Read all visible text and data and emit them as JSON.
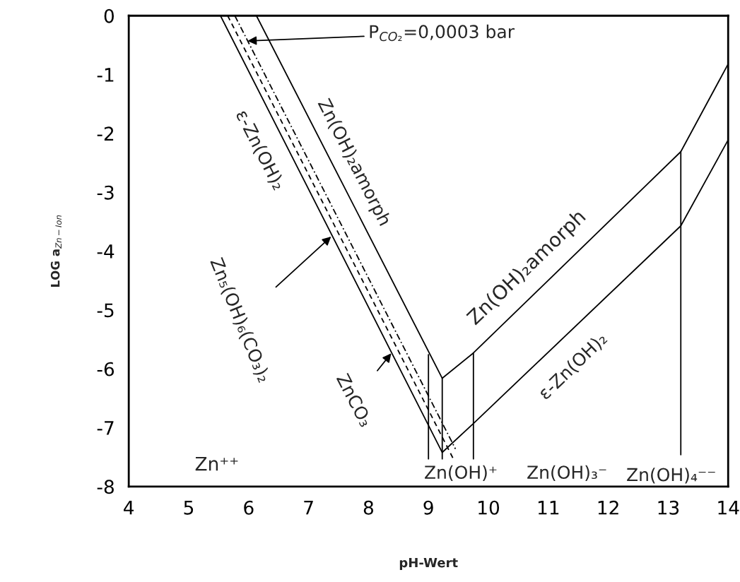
{
  "chart_data": {
    "type": "line",
    "xlabel": "pH-Wert",
    "ylabel": "LOG a$_{Zn−Ion}$",
    "xlim": [
      4,
      14
    ],
    "ylim": [
      -8,
      0
    ],
    "xticks": [
      4,
      5,
      6,
      7,
      8,
      9,
      10,
      11,
      12,
      13,
      14
    ],
    "yticks": [
      0,
      -1,
      -2,
      -3,
      -4,
      -5,
      -6,
      -7,
      -8
    ],
    "series": [
      {
        "color": "#000000",
        "line_style": "solid",
        "x": [
          6.13,
          9.23,
          9.75,
          13.21,
          14
        ],
        "values": [
          0,
          -6.16,
          -5.73,
          -2.31,
          -0.82
        ]
      },
      {
        "color": "#000000",
        "line_style": "solid",
        "x": [
          5.53,
          9.23,
          9.75,
          13.21,
          14
        ],
        "values": [
          0,
          -7.42,
          -6.93,
          -3.57,
          -2.11
        ]
      },
      {
        "color": "#000000",
        "line_style": "dashed",
        "x": [
          5.65,
          9.41
        ],
        "values": [
          0,
          -7.52
        ]
      },
      {
        "color": "#000000",
        "line_style": "dotted",
        "x": [
          5.77,
          9.45
        ],
        "values": [
          0,
          -7.36
        ]
      },
      {
        "color": "#000000",
        "line_style": "solid",
        "x": [
          9.0,
          9.0
        ],
        "values": [
          -5.76,
          -7.53
        ]
      },
      {
        "color": "#000000",
        "line_style": "solid",
        "x": [
          9.23,
          9.23
        ],
        "values": [
          -6.16,
          -7.53
        ]
      },
      {
        "color": "#000000",
        "line_style": "solid",
        "x": [
          9.75,
          9.75
        ],
        "values": [
          -5.73,
          -7.53
        ]
      },
      {
        "color": "#000000",
        "line_style": "solid",
        "x": [
          13.21,
          13.21
        ],
        "values": [
          -2.31,
          -7.46
        ]
      }
    ],
    "annotations": [
      {
        "text": "P$_{CO₂}$=0,0003 bar",
        "x": 5.95,
        "y": -0.43
      },
      "ε-Zn(OH)₂",
      "Zn(OH)₂amorph",
      {
        "text": "Zn₅(OH)₆(CO₃)₂",
        "x": 7.4,
        "y": -3.73
      },
      {
        "text": "ZnCO₃",
        "x": 8.4,
        "y": -5.71
      },
      "Zn(OH)₂amorph",
      "ε-Zn(OH)₂",
      "Zn⁺⁺",
      "Zn(OH)⁺",
      "Zn(OH)₃⁻",
      "Zn(OH)₄⁻⁻"
    ]
  }
}
